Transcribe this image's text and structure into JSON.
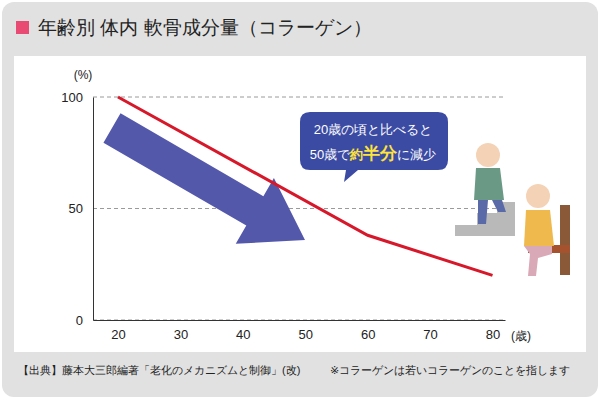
{
  "chart_data": {
    "type": "line",
    "title": "年齢別 体内 軟骨成分量（コラーゲン）",
    "x": [
      20,
      60,
      80
    ],
    "values": [
      100,
      38,
      20
    ],
    "color": "#d7182a",
    "xlim": [
      16,
      82
    ],
    "xticks": [
      20,
      30,
      40,
      50,
      60,
      70,
      80
    ],
    "ylim": [
      0,
      100
    ],
    "yticks": [
      0,
      50,
      100
    ],
    "x_label": "(歳)",
    "y_label": "(%)",
    "grid": true,
    "annotations": [
      {
        "lines": [
          [
            "20歳の頃と比べると"
          ],
          [
            "50歳で",
            "約",
            "半分",
            "に減少"
          ]
        ]
      }
    ],
    "source": "【出典】藤本大三郎編著「老化のメカニズムと制御」(改)",
    "note": "※コラーゲンは若いコラーゲンのことを指します"
  }
}
